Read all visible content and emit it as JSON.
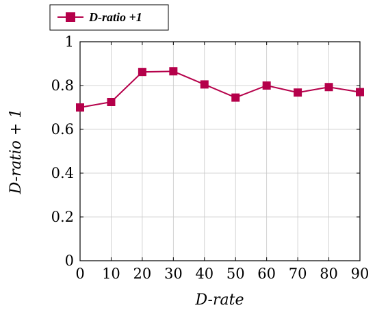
{
  "chart_data": {
    "type": "line",
    "x": [
      0,
      10,
      20,
      30,
      40,
      50,
      60,
      70,
      80,
      90
    ],
    "series": [
      {
        "name": "D-ratio +1",
        "values": [
          0.7,
          0.725,
          0.862,
          0.865,
          0.805,
          0.745,
          0.8,
          0.768,
          0.793,
          0.77
        ],
        "color": "#b5004a",
        "marker": "square"
      }
    ],
    "xlabel": "D-rate",
    "ylabel": "D-ratio + 1",
    "xlim": [
      0,
      90
    ],
    "ylim": [
      0,
      1
    ],
    "xticks": [
      0,
      10,
      20,
      30,
      40,
      50,
      60,
      70,
      80,
      90
    ],
    "yticks": [
      0,
      0.2,
      0.4,
      0.6,
      0.8,
      1
    ],
    "ytick_labels": [
      "0",
      "0.2",
      "0.4",
      "0.6",
      "0.8",
      "1"
    ],
    "grid": true,
    "legend_position": "top-left-outside"
  }
}
